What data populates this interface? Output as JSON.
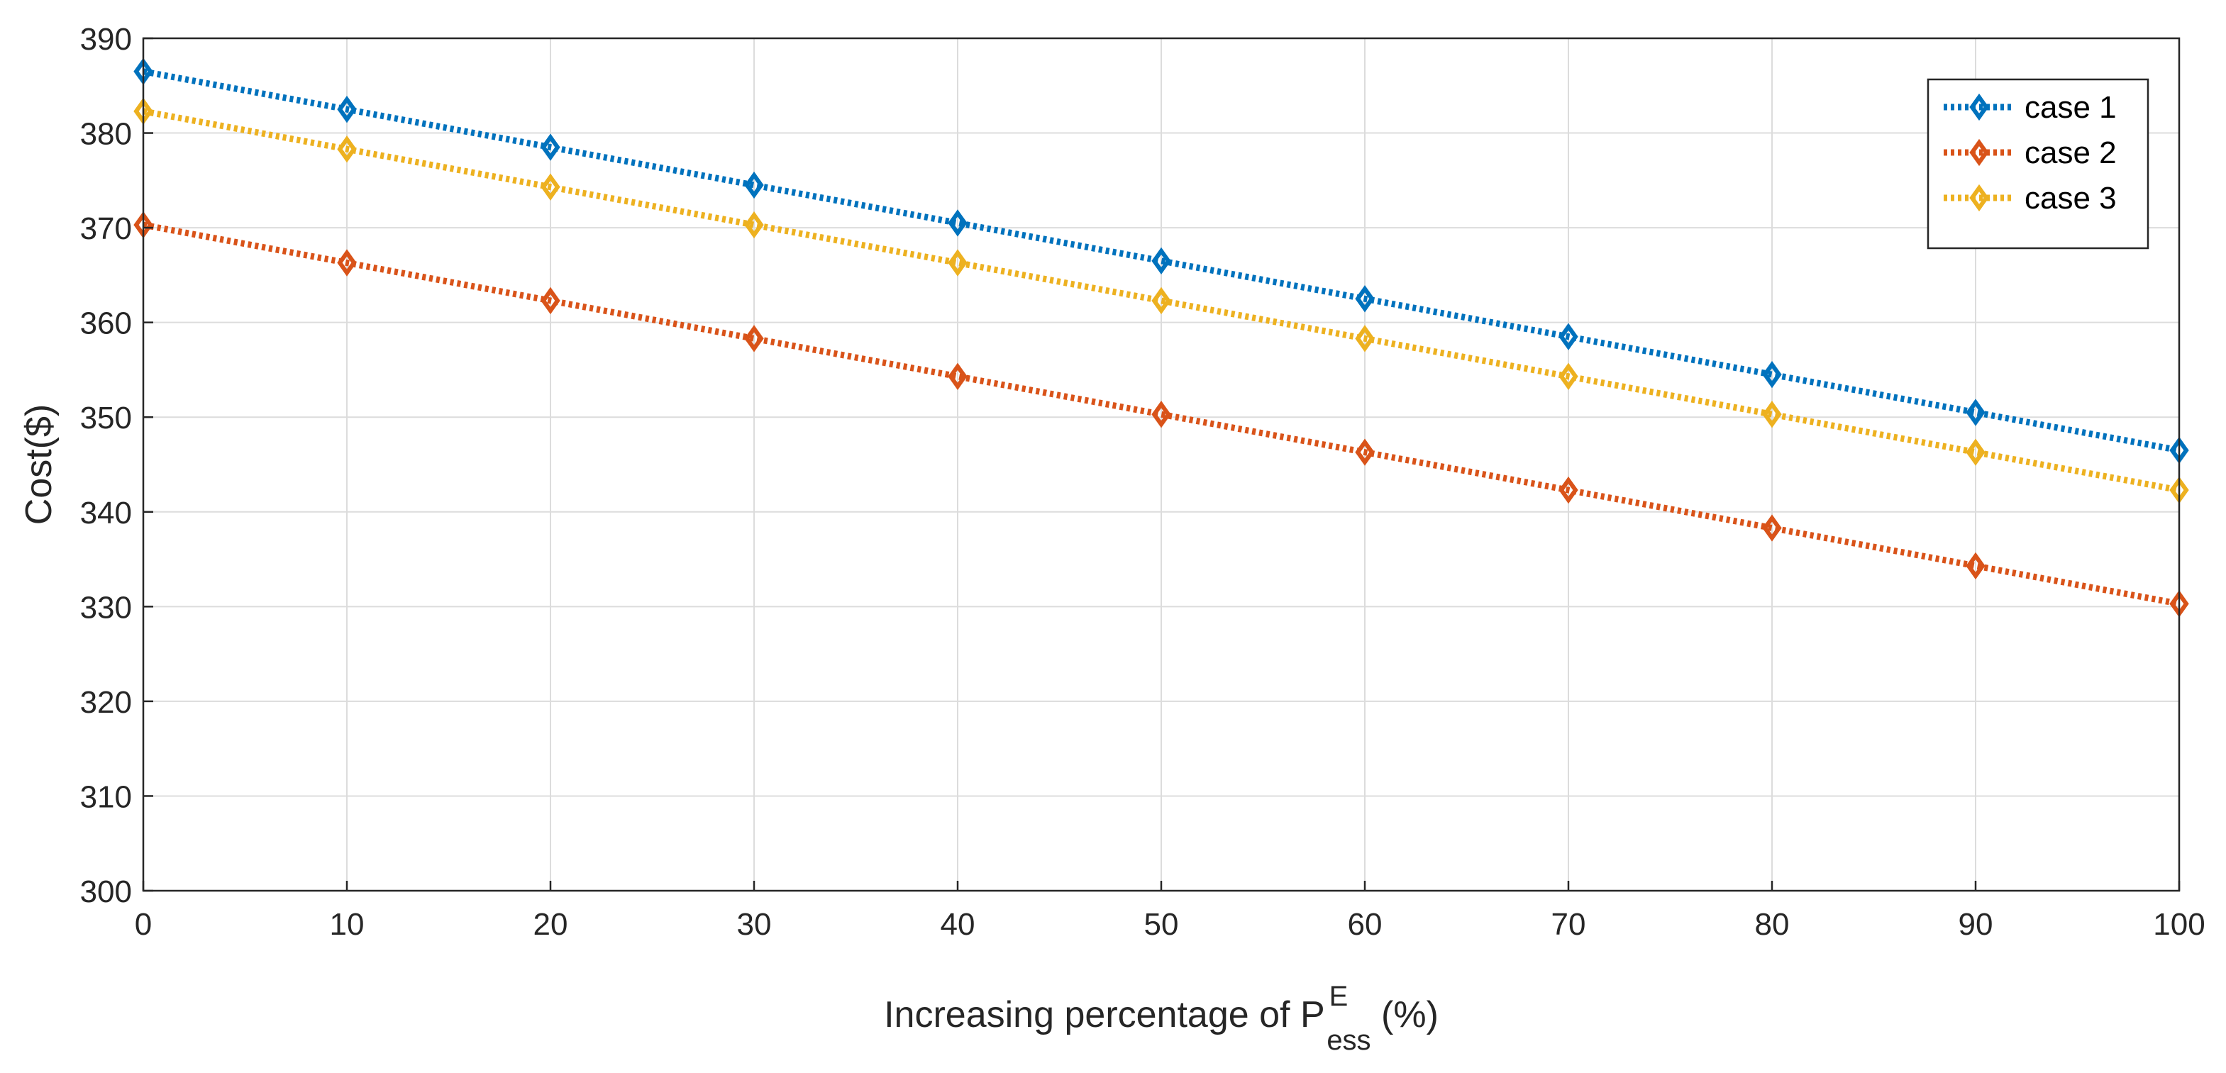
{
  "colors": {
    "background": "#ffffff",
    "axis": "#262626",
    "grid": "#dcdcdc",
    "case1": "#0072BD",
    "case2": "#D95319",
    "case3": "#EDB120"
  },
  "chart_data": {
    "type": "line",
    "title": "",
    "xlabel": {
      "prefix": "Increasing percentage of P",
      "superscript": "E",
      "subscript": "ess",
      "suffix": " (%)"
    },
    "ylabel": "Cost($)",
    "xlim": [
      0,
      100
    ],
    "ylim": [
      300,
      390
    ],
    "x_ticks": [
      0,
      10,
      20,
      30,
      40,
      50,
      60,
      70,
      80,
      90,
      100
    ],
    "y_ticks": [
      300,
      310,
      320,
      330,
      340,
      350,
      360,
      370,
      380,
      390
    ],
    "grid": true,
    "legend_position": "top-right",
    "marker": "diamond",
    "line_style": "dotted",
    "x": [
      0,
      10,
      20,
      30,
      40,
      50,
      60,
      70,
      80,
      90,
      100
    ],
    "series": [
      {
        "name": "case 1",
        "color": "#0072BD",
        "values": [
          386.5,
          382.5,
          378.5,
          374.5,
          370.5,
          366.5,
          362.5,
          358.5,
          354.5,
          350.5,
          346.5
        ]
      },
      {
        "name": "case 2",
        "color": "#D95319",
        "values": [
          370.3,
          366.3,
          362.3,
          358.3,
          354.3,
          350.3,
          346.3,
          342.3,
          338.3,
          334.3,
          330.3
        ]
      },
      {
        "name": "case 3",
        "color": "#EDB120",
        "values": [
          382.3,
          378.3,
          374.3,
          370.3,
          366.3,
          362.3,
          358.3,
          354.3,
          350.3,
          346.3,
          342.3
        ]
      }
    ]
  }
}
